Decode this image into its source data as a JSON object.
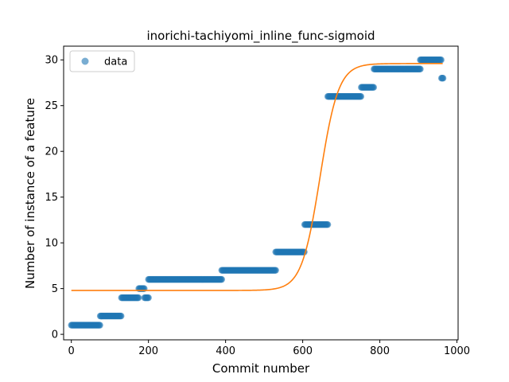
{
  "chart_data": {
    "type": "scatter",
    "title": "inorichi-tachiyomi_inline_func-sigmoid",
    "xlabel": "Commit number",
    "ylabel": "Number of instance of a feature",
    "xlim": [
      -20,
      1003
    ],
    "ylim": [
      -0.6,
      31.5
    ],
    "xticks": [
      0,
      200,
      400,
      600,
      800,
      1000
    ],
    "yticks": [
      0,
      5,
      10,
      15,
      20,
      25,
      30
    ],
    "grid": false,
    "legend": {
      "position": "top-left",
      "entries": [
        "data"
      ]
    },
    "colors": {
      "data": "#1f77b4",
      "fit": "#ff7f0e"
    },
    "series": [
      {
        "name": "data",
        "kind": "scatter",
        "segments": [
          {
            "x_start": 0,
            "x_end": 75,
            "y": 1
          },
          {
            "x_start": 75,
            "x_end": 130,
            "y": 2
          },
          {
            "x_start": 130,
            "x_end": 175,
            "y": 4
          },
          {
            "x_start": 175,
            "x_end": 190,
            "y": 5
          },
          {
            "x_start": 190,
            "x_end": 200,
            "y": 4
          },
          {
            "x_start": 200,
            "x_end": 390,
            "y": 6
          },
          {
            "x_start": 390,
            "x_end": 530,
            "y": 7
          },
          {
            "x_start": 530,
            "x_end": 605,
            "y": 9
          },
          {
            "x_start": 605,
            "x_end": 665,
            "y": 12
          },
          {
            "x_start": 665,
            "x_end": 752,
            "y": 26
          },
          {
            "x_start": 752,
            "x_end": 785,
            "y": 27
          },
          {
            "x_start": 785,
            "x_end": 905,
            "y": 29
          },
          {
            "x_start": 905,
            "x_end": 960,
            "y": 30
          },
          {
            "x_start": 960,
            "x_end": 964,
            "y": 28
          }
        ]
      },
      {
        "name": "",
        "kind": "line",
        "sigmoid": {
          "lower": 4.8,
          "upper": 29.6,
          "midpoint": 645,
          "k": 0.042,
          "x_start": 0,
          "x_end": 964
        }
      }
    ]
  }
}
